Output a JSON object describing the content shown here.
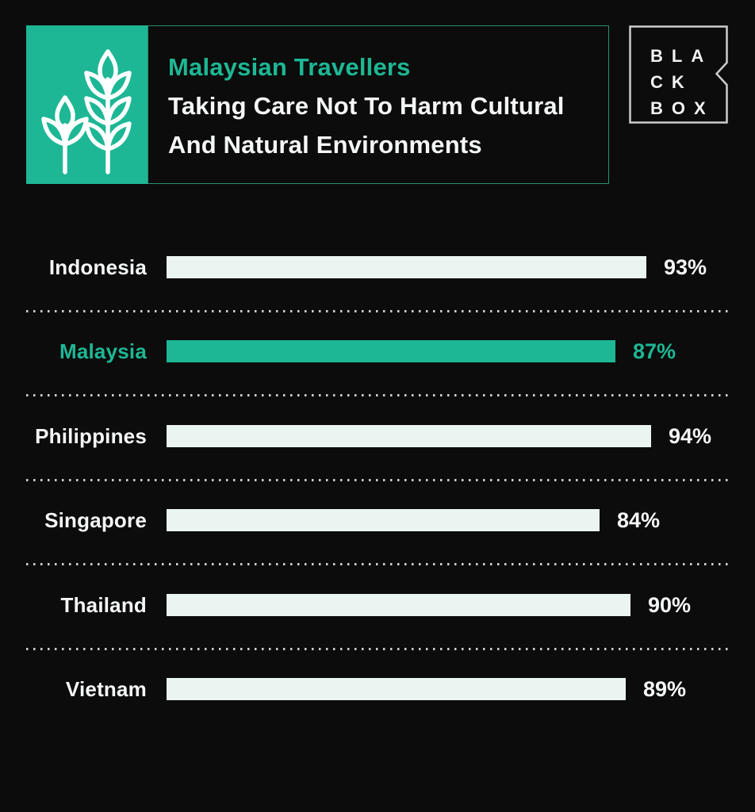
{
  "header": {
    "icon": "plants-icon",
    "title_accent": "Malaysian Travellers",
    "title_lines": [
      "Taking Care Not To Harm Cultural",
      "And Natural Environments"
    ],
    "logo": {
      "rows": [
        "BLA",
        "CK",
        "BOX"
      ],
      "name": "BLACKBOX"
    }
  },
  "colors": {
    "accent": "#1eb795",
    "bar_light": "#eaf5f2",
    "background": "#0b0c0b",
    "text": "#f5f7f6",
    "box_border": "#2e8e71",
    "logo_border": "#cccccc",
    "dots": "#c9cfcd"
  },
  "chart_data": {
    "type": "bar",
    "orientation": "horizontal",
    "title": "Malaysian Travellers Taking Care Not To Harm Cultural And Natural Environments",
    "categories": [
      "Indonesia",
      "Malaysia",
      "Philippines",
      "Singapore",
      "Thailand",
      "Vietnam"
    ],
    "values": [
      93,
      87,
      94,
      84,
      90,
      89
    ],
    "value_suffix": "%",
    "highlight_category": "Malaysia",
    "xlim": [
      0,
      100
    ],
    "legend": false,
    "grid": false
  }
}
